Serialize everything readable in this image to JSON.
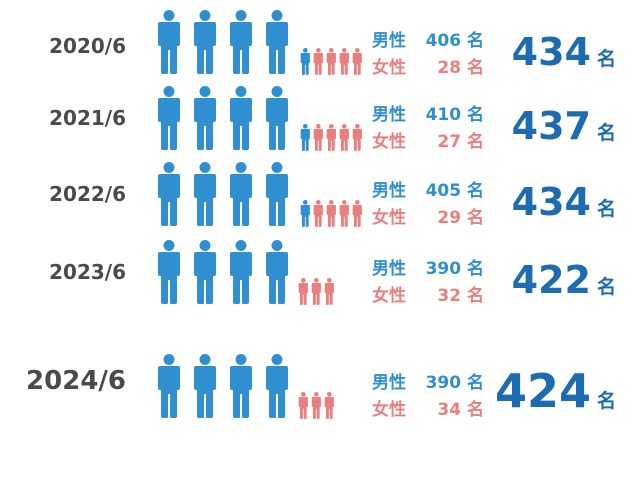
{
  "unit": "名",
  "male_label": "男性",
  "female_label": "女性",
  "colors": {
    "male": "#2f8fd1",
    "female": "#ea7f80",
    "total": "#1d6bb0",
    "year": "#4a4a4a"
  },
  "rows": [
    {
      "year": "2020/6",
      "male_value": "406 名",
      "female_value": "28 名",
      "total": "434"
    },
    {
      "year": "2021/6",
      "male_value": "410 名",
      "female_value": "27 名",
      "total": "437"
    },
    {
      "year": "2022/6",
      "male_value": "405 名",
      "female_value": "29 名",
      "total": "434"
    },
    {
      "year": "2023/6",
      "male_value": "390 名",
      "female_value": "32 名",
      "total": "422"
    },
    {
      "year": "2024/6",
      "male_value": "390 名",
      "female_value": "34 名",
      "total": "424"
    }
  ]
}
